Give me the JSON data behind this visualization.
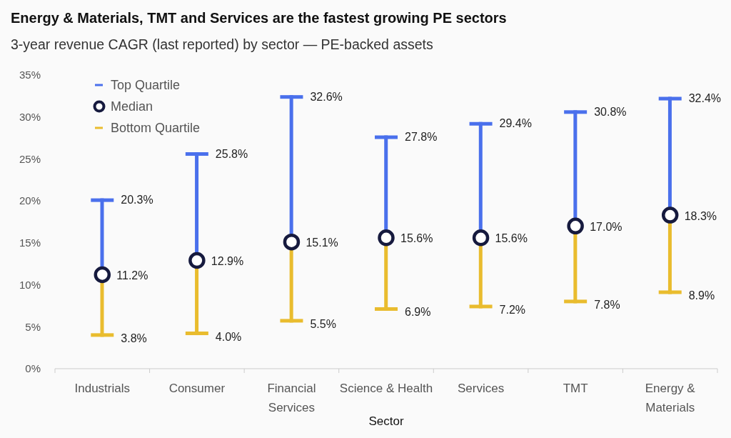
{
  "chart_data": {
    "type": "bar",
    "title": "Energy & Materials, TMT and Services are the fastest growing PE sectors",
    "subtitle": "3-year revenue CAGR (last reported) by sector — PE-backed assets",
    "xlabel": "Sector",
    "categories": [
      "Industrials",
      "Consumer",
      "Financial Services",
      "Science & Health",
      "Services",
      "TMT",
      "Energy & Materials"
    ],
    "series": [
      {
        "name": "Top Quartile",
        "color": "#4a70ec",
        "base": [
          11.2,
          12.9,
          15.1,
          15.6,
          15.6,
          17.0,
          18.3
        ],
        "values": [
          9.1,
          12.9,
          17.5,
          12.2,
          13.8,
          13.8,
          14.1
        ]
      },
      {
        "name": "Median",
        "type": "scatter",
        "color": "#161a3e",
        "values": [
          11.2,
          12.9,
          15.1,
          15.6,
          15.6,
          17.0,
          18.3
        ],
        "value_labels": [
          "11.2%",
          "12.9%",
          "15.1%",
          "15.6%",
          "15.6%",
          "17.0%",
          "18.3%"
        ]
      },
      {
        "name": "Bottom Quartile",
        "color": "#e9bc2e",
        "base": [
          11.2,
          12.9,
          15.1,
          15.6,
          15.6,
          17.0,
          18.3
        ],
        "values": [
          -7.4,
          -8.9,
          -9.6,
          -8.7,
          -8.4,
          -9.2,
          -9.4
        ]
      }
    ],
    "ylim": [
      0,
      35
    ],
    "yticks": [
      {
        "value": 0,
        "label": "0%"
      },
      {
        "value": 5,
        "label": "5%"
      },
      {
        "value": 10,
        "label": "10%"
      },
      {
        "value": 15,
        "label": "15%"
      },
      {
        "value": 20,
        "label": "20%"
      },
      {
        "value": 25,
        "label": "25%"
      },
      {
        "value": 30,
        "label": "30%"
      },
      {
        "value": 35,
        "label": "35%"
      }
    ],
    "legend": "top left",
    "marker": "circle",
    "annotations": [
      {
        "text": "20.3%",
        "x": "Industrials",
        "y": 20.3
      },
      {
        "text": "25.8%",
        "x": "Consumer",
        "y": 25.8
      },
      {
        "text": "32.6%",
        "x": "Financial Services",
        "y": 32.6
      },
      {
        "text": "27.8%",
        "x": "Science & Health",
        "y": 27.8
      },
      {
        "text": "29.4%",
        "x": "Services",
        "y": 29.4
      },
      {
        "text": "30.8%",
        "x": "TMT",
        "y": 30.8
      },
      {
        "text": "32.4%",
        "x": "Energy & Materials",
        "y": 32.4
      },
      {
        "text": "3.8%",
        "x": "Industrials",
        "y": 3.8
      },
      {
        "text": "4.0%",
        "x": "Consumer",
        "y": 4.0
      },
      {
        "text": "5.5%",
        "x": "Financial Services",
        "y": 5.5
      },
      {
        "text": "6.9%",
        "x": "Science & Health",
        "y": 6.9
      },
      {
        "text": "7.2%",
        "x": "Services",
        "y": 7.2
      },
      {
        "text": "7.8%",
        "x": "TMT",
        "y": 7.8
      },
      {
        "text": "8.9%",
        "x": "Energy & Materials",
        "y": 8.9
      }
    ]
  }
}
